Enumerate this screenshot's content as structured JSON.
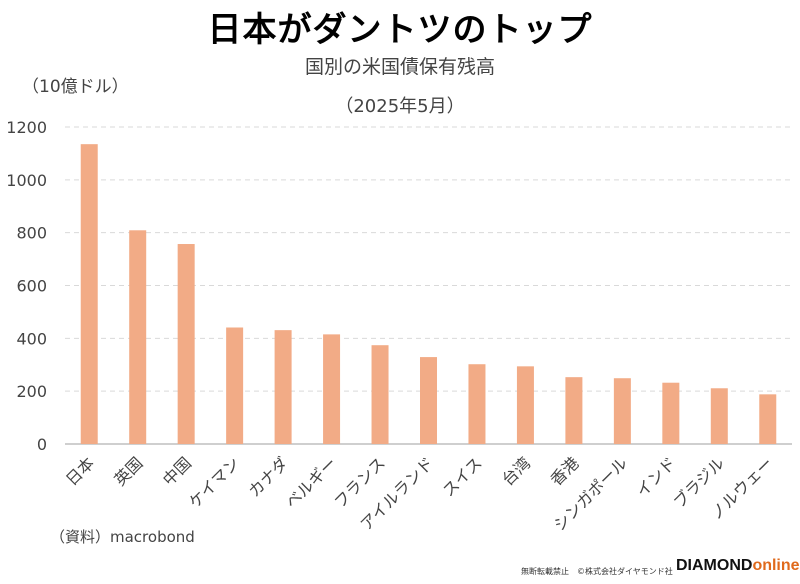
{
  "header": {
    "title": "日本がダントツのトップ",
    "subtitle": "国別の米国債保有残高",
    "date": "（2025年5月）",
    "unit": "（10億ドル）"
  },
  "footer": {
    "source": "（資料）macrobond",
    "note": "無断転載禁止　©株式会社ダイヤモンド社",
    "brand_main": "DIAMOND",
    "brand_sub": "online"
  },
  "colors": {
    "bar": "#F2AB86",
    "grid": "#d9d9d9",
    "axis": "#bfbfbf",
    "accent": "#e06a1c"
  },
  "chart_data": {
    "type": "bar",
    "title": "国別の米国債保有残高",
    "ylabel": "（10億ドル）",
    "ylim": [
      0,
      1200
    ],
    "yticks": [
      0,
      200,
      400,
      600,
      800,
      1000,
      1200
    ],
    "grid": true,
    "categories": [
      "日本",
      "英国",
      "中国",
      "ケイマン",
      "カナダ",
      "ベルギー",
      "フランス",
      "アイルランド",
      "スイス",
      "台湾",
      "香港",
      "シンガポール",
      "インド",
      "ブラジル",
      "ノルウェー"
    ],
    "values": [
      1135,
      809,
      757,
      441,
      431,
      415,
      374,
      329,
      302,
      294,
      253,
      249,
      232,
      211,
      188
    ]
  }
}
